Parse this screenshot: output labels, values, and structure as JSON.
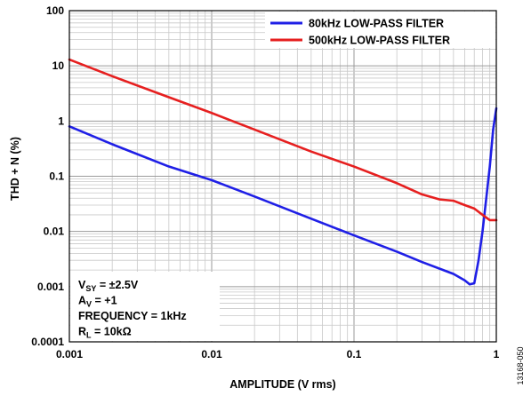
{
  "chart_data": {
    "type": "line",
    "xlabel": "AMPLITUDE (V rms)",
    "ylabel": "THD + N (%)",
    "x_scale": "log",
    "y_scale": "log",
    "xlim": [
      0.001,
      1
    ],
    "ylim": [
      0.0001,
      100
    ],
    "grid": true,
    "legend_position": "top-right",
    "x_ticks": [
      {
        "value": 0.001,
        "label": "0.001"
      },
      {
        "value": 0.01,
        "label": "0.01"
      },
      {
        "value": 0.1,
        "label": "0.1"
      },
      {
        "value": 1,
        "label": "1"
      }
    ],
    "y_ticks": [
      {
        "value": 100,
        "label": "100"
      },
      {
        "value": 10,
        "label": "10"
      },
      {
        "value": 1,
        "label": "1"
      },
      {
        "value": 0.1,
        "label": "0.1"
      },
      {
        "value": 0.01,
        "label": "0.01"
      },
      {
        "value": 0.001,
        "label": "0.001"
      },
      {
        "value": 0.0001,
        "label": "0.0001"
      }
    ],
    "series": [
      {
        "name": "80kHz LOW-PASS FILTER",
        "color": "#1f1fe6",
        "x": [
          0.001,
          0.002,
          0.005,
          0.01,
          0.02,
          0.05,
          0.1,
          0.2,
          0.3,
          0.5,
          0.6,
          0.65,
          0.7,
          0.75,
          0.8,
          0.85,
          0.9,
          0.95,
          1.0
        ],
        "y": [
          0.8,
          0.38,
          0.15,
          0.085,
          0.043,
          0.017,
          0.0085,
          0.0043,
          0.0028,
          0.0017,
          0.0013,
          0.0011,
          0.00115,
          0.003,
          0.01,
          0.04,
          0.15,
          0.7,
          1.7
        ]
      },
      {
        "name": "500kHz LOW-PASS FILTER",
        "color": "#e61f1f",
        "x": [
          0.001,
          0.002,
          0.005,
          0.01,
          0.02,
          0.05,
          0.1,
          0.2,
          0.3,
          0.4,
          0.5,
          0.6,
          0.7,
          0.8,
          0.9,
          1.0
        ],
        "y": [
          13,
          6.5,
          2.7,
          1.4,
          0.7,
          0.28,
          0.15,
          0.075,
          0.047,
          0.038,
          0.036,
          0.03,
          0.026,
          0.02,
          0.016,
          0.016
        ]
      }
    ],
    "annotations": [
      {
        "main": "V",
        "sub": "SY",
        "rest": " = ±2.5V"
      },
      {
        "main": "A",
        "sub": "V",
        "rest": " = +1"
      },
      {
        "main": "FREQUENCY = 1kHz",
        "sub": "",
        "rest": ""
      },
      {
        "main": "R",
        "sub": "L",
        "rest": " = 10kΩ"
      }
    ],
    "figure_number": "13168-050"
  }
}
